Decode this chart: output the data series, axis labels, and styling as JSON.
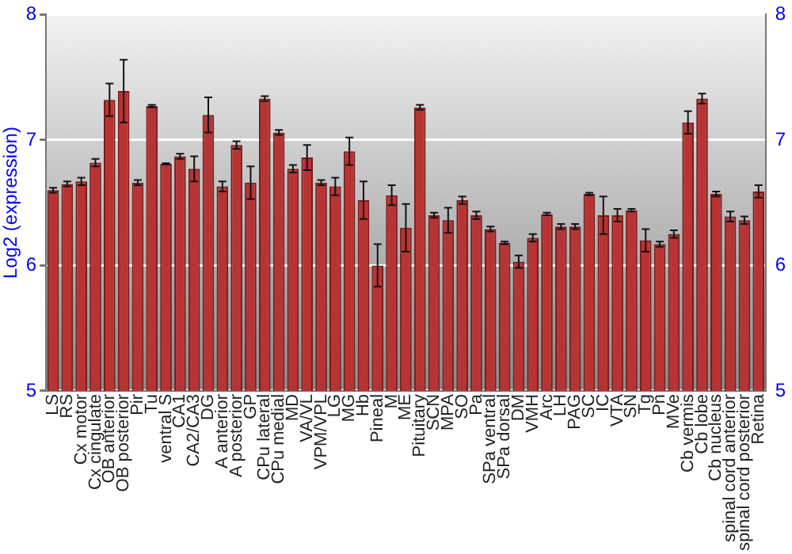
{
  "chart_data": {
    "type": "bar",
    "ylabel": "Log2 (expression)",
    "categories": [
      "LS",
      "RS",
      "Cx motor",
      "Cx cingulate",
      "OB anterior",
      "OB posterior",
      "Pir",
      "Tu",
      "ventral S",
      "CA1",
      "CA2/CA3",
      "DG",
      "A anterior",
      "A posterior",
      "GP",
      "CPu lateral",
      "CPu medial",
      "MD",
      "VA/VL",
      "VPM/VPL",
      "LG",
      "MG",
      "Hb",
      "Pineal",
      "M",
      "ME",
      "Pituitary",
      "SCN",
      "MPA",
      "SO",
      "Pa",
      "SPa ventral",
      "SPa dorsal",
      "DM",
      "VMH",
      "Arc",
      "LH",
      "PAG",
      "SC",
      "IC",
      "VTA",
      "SN",
      "Tg",
      "Pn",
      "MVe",
      "Cb vermis",
      "Cb lobe",
      "Cb nucleus",
      "spinal cord anterior",
      "spinal cord posterior",
      "Retina"
    ],
    "values": [
      6.6,
      6.65,
      6.67,
      6.82,
      7.32,
      7.39,
      6.66,
      7.27,
      6.81,
      6.87,
      6.77,
      7.2,
      6.63,
      6.96,
      6.66,
      7.33,
      7.06,
      6.77,
      6.86,
      6.66,
      6.63,
      6.91,
      6.52,
      6.0,
      6.56,
      6.3,
      7.26,
      6.4,
      6.36,
      6.52,
      6.4,
      6.29,
      6.18,
      6.03,
      6.22,
      6.41,
      6.31,
      6.31,
      6.57,
      6.4,
      6.4,
      6.44,
      6.2,
      6.17,
      6.25,
      7.14,
      7.33,
      6.57,
      6.39,
      6.36,
      6.59
    ],
    "errors": [
      0.02,
      0.02,
      0.03,
      0.03,
      0.13,
      0.25,
      0.02,
      0.01,
      0.005,
      0.02,
      0.1,
      0.14,
      0.04,
      0.03,
      0.13,
      0.02,
      0.02,
      0.03,
      0.1,
      0.02,
      0.07,
      0.11,
      0.15,
      0.17,
      0.08,
      0.19,
      0.02,
      0.02,
      0.1,
      0.03,
      0.03,
      0.02,
      0.01,
      0.05,
      0.03,
      0.01,
      0.02,
      0.02,
      0.01,
      0.15,
      0.05,
      0.01,
      0.09,
      0.02,
      0.03,
      0.09,
      0.04,
      0.02,
      0.04,
      0.03,
      0.05
    ],
    "color": "#b83434",
    "ylim": [
      5,
      8
    ],
    "yticks": [
      5,
      6,
      7,
      8
    ],
    "y2lim": [
      5,
      8
    ],
    "y2ticks": [
      5,
      6,
      7,
      8
    ],
    "grid": "y"
  }
}
